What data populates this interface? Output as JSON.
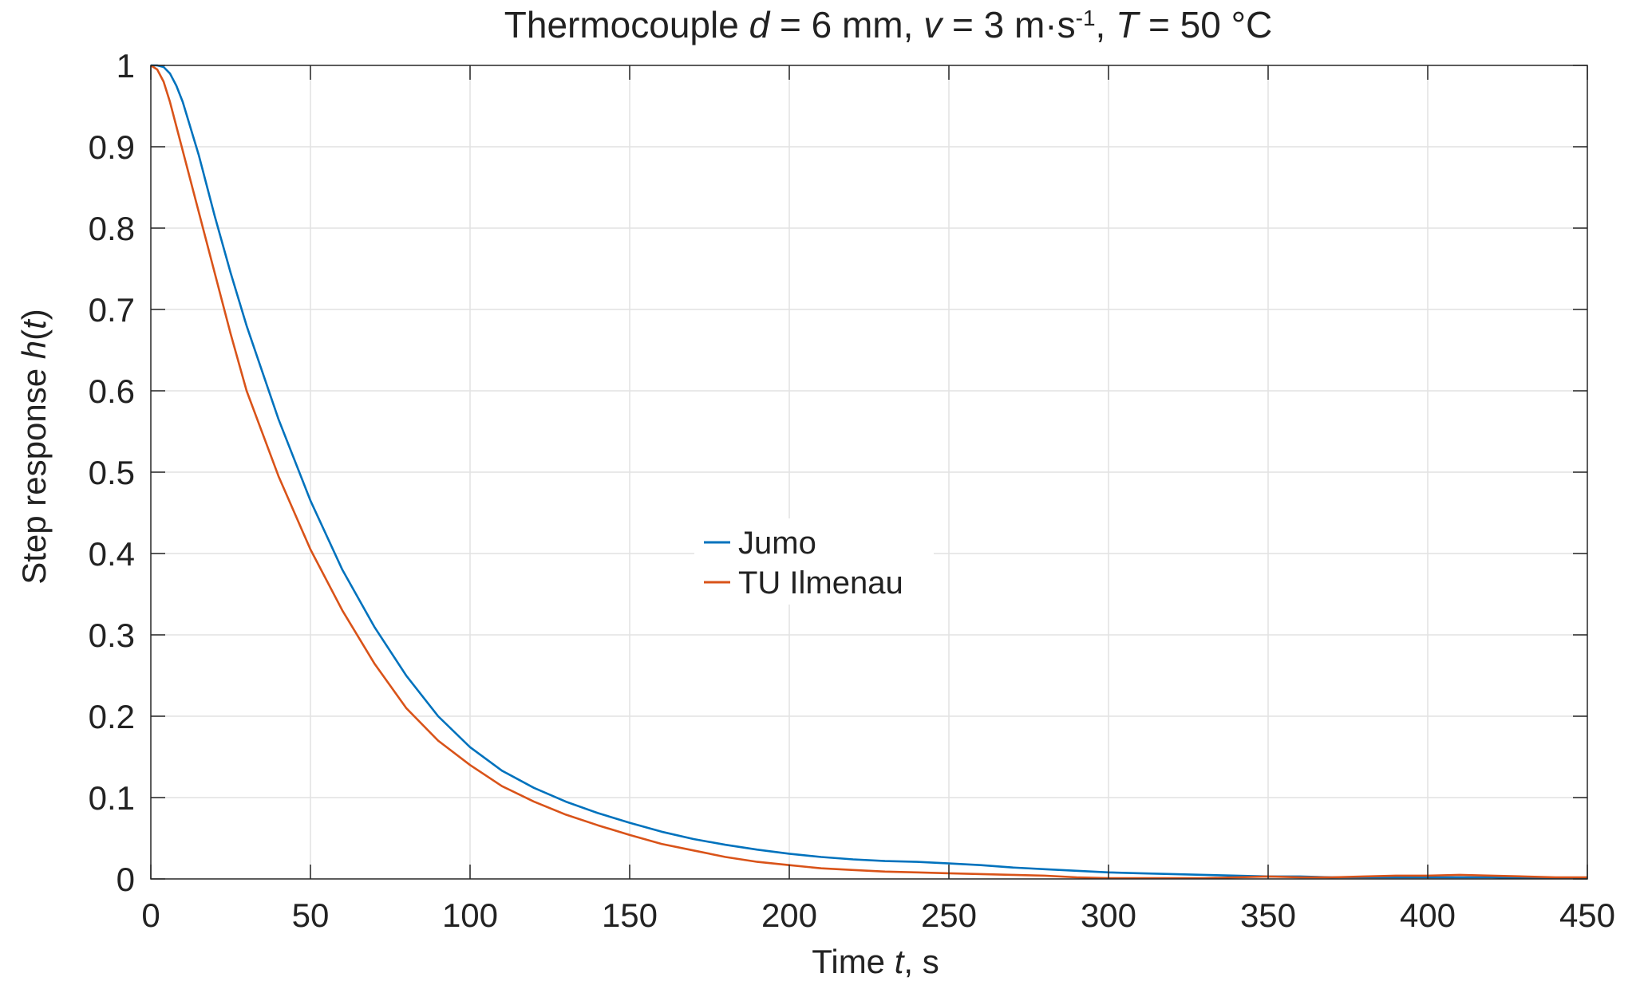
{
  "chart_data": {
    "type": "line",
    "title": {
      "prefix": "Thermocouple ",
      "d_symbol": "d",
      "d_value": " = 6 mm, ",
      "v_symbol": "v",
      "v_value": " = 3 m·s",
      "v_exponent": "-1",
      "sep": ", ",
      "T_symbol": "T",
      "T_value": " = 50 °C"
    },
    "xlabel": {
      "prefix": "Time ",
      "symbol": "t",
      "suffix": ", s"
    },
    "ylabel": {
      "prefix": "Step response ",
      "func": "h",
      "open": "(",
      "symbol": "t",
      "close": ")"
    },
    "xlim": [
      0,
      450
    ],
    "ylim": [
      0,
      1
    ],
    "xticks": [
      0,
      50,
      100,
      150,
      200,
      250,
      300,
      350,
      400,
      450
    ],
    "xtick_labels": [
      "0",
      "50",
      "100",
      "150",
      "200",
      "250",
      "300",
      "350",
      "400",
      "450"
    ],
    "yticks": [
      0,
      0.1,
      0.2,
      0.3,
      0.4,
      0.5,
      0.6,
      0.7,
      0.8,
      0.9,
      1
    ],
    "ytick_labels": [
      "0",
      "0.1",
      "0.2",
      "0.3",
      "0.4",
      "0.5",
      "0.6",
      "0.7",
      "0.8",
      "0.9",
      "1"
    ],
    "grid": true,
    "legend_position": "center",
    "series": [
      {
        "name": "Jumo",
        "color": "#0072BD",
        "x": [
          0,
          2,
          4,
          6,
          8,
          10,
          15,
          20,
          25,
          30,
          40,
          50,
          60,
          70,
          80,
          90,
          100,
          110,
          120,
          130,
          140,
          150,
          160,
          170,
          180,
          190,
          200,
          210,
          220,
          230,
          240,
          250,
          260,
          270,
          280,
          290,
          300,
          310,
          320,
          330,
          340,
          350,
          360,
          370,
          380,
          390,
          400,
          410,
          420,
          430,
          440,
          450
        ],
        "values": [
          1.0,
          1.0,
          0.998,
          0.99,
          0.975,
          0.955,
          0.89,
          0.815,
          0.745,
          0.68,
          0.565,
          0.465,
          0.38,
          0.31,
          0.25,
          0.2,
          0.162,
          0.133,
          0.112,
          0.095,
          0.081,
          0.069,
          0.058,
          0.049,
          0.042,
          0.036,
          0.031,
          0.027,
          0.024,
          0.022,
          0.021,
          0.019,
          0.017,
          0.014,
          0.012,
          0.01,
          0.008,
          0.007,
          0.006,
          0.005,
          0.004,
          0.003,
          0.003,
          0.002,
          0.002,
          0.002,
          0.002,
          0.002,
          0.002,
          0.001,
          0.001,
          0.001
        ]
      },
      {
        "name": "TU Ilmenau",
        "color": "#D95319",
        "x": [
          0,
          2,
          4,
          6,
          8,
          10,
          15,
          20,
          25,
          30,
          40,
          50,
          60,
          70,
          80,
          90,
          100,
          110,
          120,
          130,
          140,
          150,
          160,
          170,
          180,
          190,
          200,
          210,
          220,
          230,
          240,
          250,
          260,
          270,
          280,
          290,
          300,
          310,
          320,
          330,
          340,
          350,
          360,
          370,
          380,
          390,
          400,
          410,
          420,
          430,
          440,
          450
        ],
        "values": [
          1.0,
          0.995,
          0.98,
          0.955,
          0.925,
          0.895,
          0.82,
          0.745,
          0.67,
          0.6,
          0.495,
          0.405,
          0.33,
          0.265,
          0.21,
          0.17,
          0.14,
          0.114,
          0.095,
          0.079,
          0.066,
          0.054,
          0.043,
          0.035,
          0.027,
          0.021,
          0.017,
          0.013,
          0.011,
          0.009,
          0.008,
          0.007,
          0.006,
          0.005,
          0.004,
          0.002,
          0.001,
          0.001,
          0.001,
          0.001,
          0.002,
          0.003,
          0.002,
          0.002,
          0.003,
          0.004,
          0.004,
          0.005,
          0.004,
          0.003,
          0.002,
          0.002
        ]
      }
    ]
  }
}
